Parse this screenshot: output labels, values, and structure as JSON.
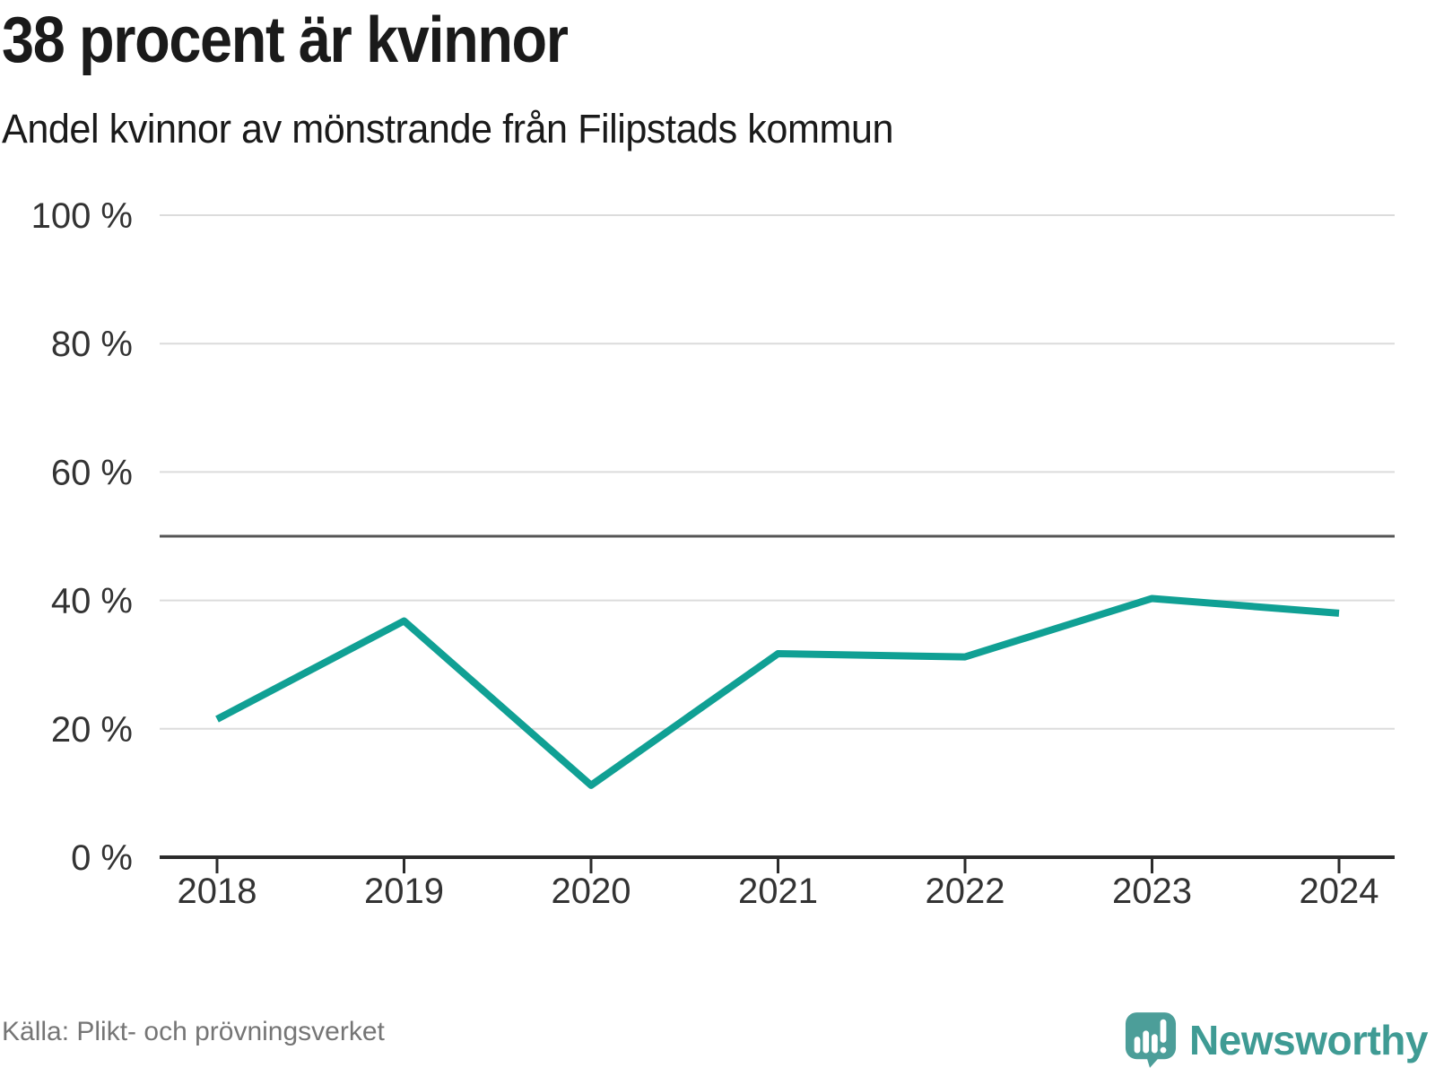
{
  "header": {
    "title": "38 procent är kvinnor",
    "subtitle": "Andel kvinnor av mönstrande från Filipstads kommun"
  },
  "chart_data": {
    "type": "line",
    "title": "38 procent är kvinnor",
    "subtitle": "Andel kvinnor av mönstrande från Filipstads kommun",
    "x": [
      2018,
      2019,
      2020,
      2021,
      2022,
      2023,
      2024
    ],
    "x_labels": [
      "2018",
      "2019",
      "2020",
      "2021",
      "2022",
      "2023",
      "2024"
    ],
    "series": [
      {
        "name": "Andel kvinnor av mönstrande",
        "values": [
          21.5,
          36.8,
          11.2,
          31.7,
          31.2,
          40.3,
          38.0
        ]
      }
    ],
    "ylim": [
      0,
      100
    ],
    "yticks": [
      0,
      20,
      40,
      60,
      80,
      100
    ],
    "ytick_labels": [
      "0 %",
      "20 %",
      "40 %",
      "60 %",
      "80 %",
      "100 %"
    ],
    "reference_line": {
      "value": 50
    },
    "grid": true,
    "legend": "none"
  },
  "footer": {
    "source": "Källa: Plikt- och prövningsverket",
    "logo_text": "Newsworthy"
  },
  "colors": {
    "line": "#10a094",
    "grid": "#dcdcdc",
    "axis": "#2b2b2b",
    "tick_label": "#333333",
    "reference": "#555555",
    "title": "#1a1a1a",
    "source": "#757575",
    "logo_icon": "#4c9e99",
    "logo_text": "#3f9b94",
    "background": "#ffffff"
  }
}
